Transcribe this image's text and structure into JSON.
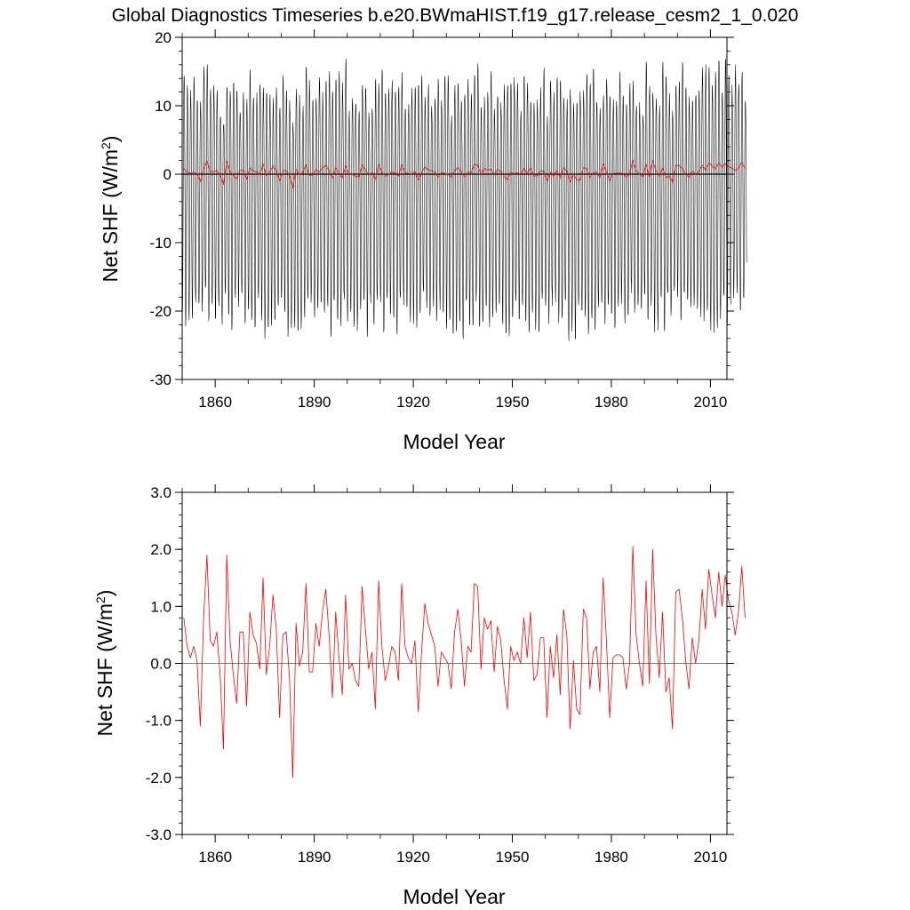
{
  "title": "Global Diagnostics Timeseries b.e20.BWmaHIST.f19_g17.release_cesm2_1_0.020",
  "colors": {
    "monthly": "#000000",
    "annual": "#ff0000",
    "zero_line": "#000000"
  },
  "chart_data": [
    {
      "type": "line",
      "panel": "top",
      "xlabel": "Model Year",
      "ylabel_main": "Net SHF (W/m",
      "ylabel_sup": "2",
      "ylabel_end": ")",
      "xlim": [
        1850,
        2015
      ],
      "ylim": [
        -30,
        20
      ],
      "xticks": [
        1860,
        1890,
        1920,
        1950,
        1980,
        2010
      ],
      "yticks": [
        20,
        10,
        0,
        -10,
        -20,
        -30
      ],
      "ytick_labels": [
        "20",
        "10",
        "0",
        "-10",
        "-20",
        "-30"
      ],
      "reference_line": 0,
      "series": [
        {
          "name": "monthly",
          "color": "#000000",
          "x_start": 1850,
          "samples_per_year": 12,
          "mean": 0,
          "peak_typical": 12,
          "trough_typical": -21,
          "peak_range": [
            5,
            18
          ],
          "trough_range": [
            -26,
            -15
          ]
        },
        {
          "name": "annual",
          "color": "#ff0000",
          "source": "panel2"
        }
      ]
    },
    {
      "type": "line",
      "panel": "bottom",
      "xlabel": "Model Year",
      "ylabel_main": "Net SHF (W/m",
      "ylabel_sup": "2",
      "ylabel_end": ")",
      "xlim": [
        1850,
        2015
      ],
      "ylim": [
        -3,
        3
      ],
      "xticks": [
        1860,
        1890,
        1920,
        1950,
        1980,
        2010
      ],
      "yticks": [
        3,
        2,
        1,
        0,
        -1,
        -2,
        -3
      ],
      "ytick_labels": [
        "3.0",
        "2.0",
        "1.0",
        "0.0",
        "-1.0",
        "-2.0",
        "-3.0"
      ],
      "reference_line": 0,
      "series": [
        {
          "name": "annual",
          "color": "#ff0000",
          "x_start": 1850,
          "step": 1,
          "values": [
            0.8,
            0.3,
            0.1,
            0.3,
            0.05,
            -1.1,
            0.8,
            1.9,
            0.4,
            0.3,
            0.55,
            -0.2,
            -1.5,
            1.9,
            0.4,
            -0.2,
            -0.7,
            0.55,
            0.55,
            -0.75,
            0.9,
            0.5,
            0.35,
            -0.1,
            1.5,
            -0.2,
            0.3,
            1.2,
            0.6,
            -0.95,
            0.5,
            0.55,
            -0.25,
            -2.0,
            0.7,
            -0.05,
            0.2,
            1.4,
            -0.15,
            -0.15,
            0.7,
            0.3,
            0.9,
            1.3,
            0.5,
            -0.6,
            0.9,
            0.1,
            -0.55,
            1.2,
            -0.1,
            0.0,
            -0.3,
            -0.4,
            1.35,
            0.6,
            -0.1,
            0.2,
            -0.8,
            1.45,
            0.3,
            -0.3,
            -0.05,
            0.3,
            0.2,
            -0.3,
            1.4,
            0.3,
            0.1,
            0.0,
            0.4,
            -0.85,
            0.2,
            1.05,
            0.7,
            0.5,
            0.3,
            -0.4,
            0.2,
            0.1,
            0.0,
            -0.45,
            0.55,
            0.95,
            0.4,
            -0.4,
            0.3,
            0.2,
            1.4,
            1.35,
            -0.1,
            0.8,
            0.6,
            0.75,
            -0.15,
            0.65,
            0.4,
            -0.3,
            -0.8,
            0.3,
            0.05,
            0.2,
            0.0,
            0.8,
            0.1,
            0.9,
            -0.3,
            -0.2,
            0.45,
            0.45,
            -0.95,
            0.3,
            -0.25,
            0.5,
            -0.55,
            0.95,
            0.5,
            -1.15,
            0.05,
            -0.8,
            -0.9,
            0.95,
            0.8,
            -0.45,
            0.2,
            0.3,
            -0.5,
            1.5,
            0.4,
            -0.95,
            0.1,
            0.15,
            0.15,
            0.1,
            -0.45,
            0.0,
            2.05,
            0.5,
            0.0,
            -0.4,
            1.45,
            -0.35,
            2.0,
            0.5,
            -0.25,
            0.9,
            -0.5,
            -0.25,
            -1.15,
            1.25,
            1.3,
            0.8,
            0.05,
            -0.45,
            0.45,
            0.0,
            0.4,
            1.3,
            0.6,
            1.65,
            1.2,
            0.8,
            1.6,
            1.0,
            1.55,
            1.1,
            0.9,
            0.5,
            0.9,
            1.7,
            0.8
          ]
        }
      ]
    }
  ]
}
